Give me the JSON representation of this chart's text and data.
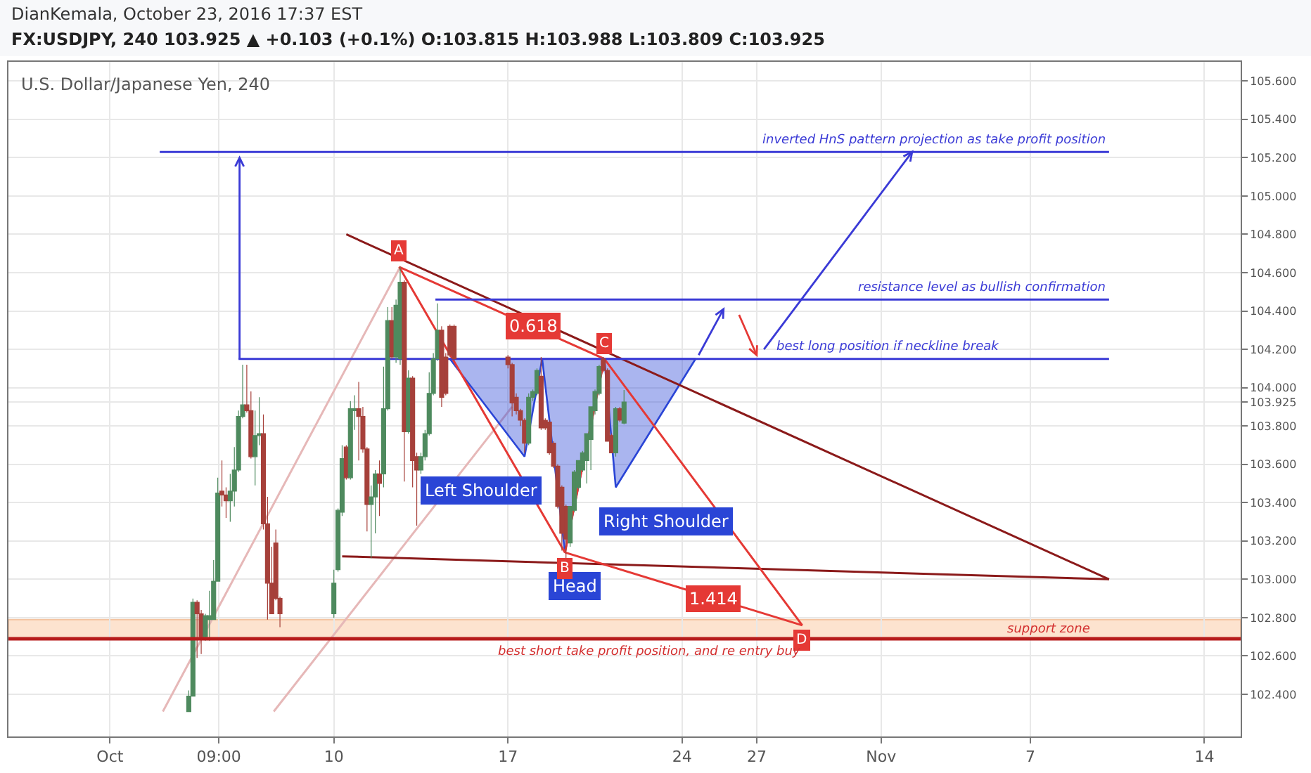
{
  "chart_data": {
    "type": "candlestick",
    "title": "DianKemala, October 23, 2016 17:37 EST",
    "subtitle": "FX:USDJPY, 240 103.925 ▲ +0.103 (+0.1%) O:103.815 H:103.988 L:103.809 C:103.925",
    "annotations": [
      "U.S. Dollar/Japanese Yen, 240",
      {
        "text": "0.618",
        "x": "2016-10-18T00:00",
        "y": 104.32
      },
      {
        "text": "1.414",
        "x": "2016-10-25T06:00",
        "y": 102.9
      }
    ],
    "x": [
      "2016-10-04T04:00",
      "2016-10-04T08:00",
      "2016-10-04T12:00",
      "2016-10-04T16:00",
      "2016-10-04T20:00",
      "2016-10-05T00:00",
      "2016-10-05T04:00",
      "2016-10-05T08:00",
      "2016-10-05T12:00",
      "2016-10-05T16:00",
      "2016-10-05T20:00",
      "2016-10-06T00:00",
      "2016-10-06T04:00",
      "2016-10-06T08:00",
      "2016-10-06T12:00",
      "2016-10-06T16:00",
      "2016-10-06T20:00",
      "2016-10-07T00:00",
      "2016-10-07T04:00",
      "2016-10-07T08:00",
      "2016-10-07T12:00",
      "2016-10-07T16:00",
      "2016-10-07T20:00",
      "2016-10-10T00:00",
      "2016-10-10T04:00",
      "2016-10-10T08:00",
      "2016-10-10T12:00",
      "2016-10-10T16:00",
      "2016-10-10T20:00",
      "2016-10-11T00:00",
      "2016-10-11T04:00",
      "2016-10-11T08:00",
      "2016-10-11T12:00",
      "2016-10-11T16:00",
      "2016-10-11T20:00",
      "2016-10-12T00:00",
      "2016-10-12T04:00",
      "2016-10-12T08:00",
      "2016-10-12T12:00",
      "2016-10-12T16:00",
      "2016-10-12T20:00",
      "2016-10-13T00:00",
      "2016-10-13T04:00",
      "2016-10-13T08:00",
      "2016-10-13T12:00",
      "2016-10-13T16:00",
      "2016-10-13T20:00",
      "2016-10-14T00:00",
      "2016-10-14T04:00",
      "2016-10-14T08:00",
      "2016-10-14T12:00",
      "2016-10-14T16:00",
      "2016-10-14T20:00",
      "2016-10-17T00:00",
      "2016-10-17T04:00",
      "2016-10-17T08:00",
      "2016-10-17T12:00",
      "2016-10-17T16:00",
      "2016-10-17T20:00",
      "2016-10-18T00:00",
      "2016-10-18T04:00",
      "2016-10-18T08:00",
      "2016-10-18T12:00",
      "2016-10-18T16:00",
      "2016-10-18T20:00",
      "2016-10-19T00:00",
      "2016-10-19T04:00",
      "2016-10-19T08:00",
      "2016-10-19T12:00",
      "2016-10-19T16:00",
      "2016-10-19T20:00",
      "2016-10-20T00:00",
      "2016-10-20T04:00",
      "2016-10-20T08:00",
      "2016-10-20T12:00",
      "2016-10-20T16:00",
      "2016-10-20T20:00",
      "2016-10-21T00:00",
      "2016-10-21T04:00",
      "2016-10-21T08:00",
      "2016-10-21T12:00",
      "2016-10-21T16:00"
    ],
    "ohlc": [
      [
        102.31,
        102.42,
        102.31,
        102.39
      ],
      [
        102.39,
        102.9,
        102.39,
        102.88
      ],
      [
        102.88,
        102.89,
        102.59,
        102.82
      ],
      [
        102.82,
        102.84,
        102.61,
        102.7
      ],
      [
        102.7,
        102.82,
        102.68,
        102.81
      ],
      [
        102.79,
        102.94,
        102.68,
        102.81
      ],
      [
        102.79,
        103.1,
        102.79,
        102.99
      ],
      [
        102.99,
        103.53,
        102.99,
        103.45
      ],
      [
        103.46,
        103.62,
        103.38,
        103.44
      ],
      [
        103.44,
        103.48,
        103.32,
        103.41
      ],
      [
        103.41,
        103.55,
        103.3,
        103.46
      ],
      [
        103.46,
        103.69,
        103.38,
        103.57
      ],
      [
        103.57,
        103.88,
        103.56,
        103.85
      ],
      [
        103.85,
        104.12,
        103.84,
        103.91
      ],
      [
        103.91,
        104.12,
        103.87,
        103.88
      ],
      [
        103.88,
        103.98,
        103.63,
        103.64
      ],
      [
        103.64,
        103.88,
        103.49,
        103.75
      ],
      [
        103.75,
        103.95,
        103.7,
        103.76
      ],
      [
        103.76,
        103.86,
        103.26,
        103.29
      ],
      [
        103.29,
        103.43,
        102.79,
        102.98
      ],
      [
        102.98,
        103.17,
        102.82,
        102.82
      ],
      [
        103.19,
        103.26,
        102.89,
        102.9
      ],
      [
        102.9,
        102.91,
        102.75,
        102.82
      ],
      [
        102.82,
        103.05,
        102.8,
        102.98
      ],
      [
        103.05,
        103.37,
        103.04,
        103.36
      ],
      [
        103.35,
        103.7,
        103.33,
        103.63
      ],
      [
        103.69,
        103.7,
        103.52,
        103.53
      ],
      [
        103.53,
        103.93,
        103.52,
        103.89
      ],
      [
        103.88,
        103.96,
        103.78,
        103.89
      ],
      [
        103.89,
        104.03,
        103.62,
        103.85
      ],
      [
        103.85,
        103.9,
        103.66,
        103.68
      ],
      [
        103.68,
        103.69,
        103.25,
        103.39
      ],
      [
        103.39,
        103.49,
        103.11,
        103.43
      ],
      [
        103.43,
        103.57,
        103.24,
        103.55
      ],
      [
        103.55,
        103.62,
        103.33,
        103.5
      ],
      [
        103.55,
        104.11,
        103.48,
        103.89
      ],
      [
        103.89,
        104.42,
        103.88,
        104.35
      ],
      [
        104.35,
        104.42,
        104.15,
        104.16
      ],
      [
        104.16,
        104.46,
        104.13,
        104.43
      ],
      [
        104.15,
        104.63,
        104.12,
        104.55
      ],
      [
        104.55,
        104.56,
        103.51,
        103.77
      ],
      [
        103.77,
        104.09,
        103.76,
        104.05
      ],
      [
        104.05,
        104.06,
        103.48,
        103.62
      ],
      [
        103.64,
        103.66,
        103.28,
        103.57
      ],
      [
        103.57,
        103.66,
        103.55,
        103.64
      ],
      [
        103.64,
        103.78,
        103.62,
        103.76
      ],
      [
        103.76,
        104.08,
        103.75,
        103.97
      ],
      [
        103.97,
        104.18,
        103.96,
        104.15
      ],
      [
        104.15,
        104.44,
        104.14,
        104.3
      ],
      [
        104.3,
        104.32,
        103.9,
        103.95
      ],
      [
        104.16,
        104.18,
        103.96,
        103.97
      ],
      [
        104.32,
        104.33,
        104.16,
        104.17
      ],
      [
        104.32,
        104.33,
        104.14,
        104.15
      ],
      [
        104.16,
        104.17,
        104.1,
        104.12
      ],
      [
        104.12,
        104.13,
        103.85,
        103.92
      ],
      [
        103.95,
        103.97,
        103.86,
        103.88
      ],
      [
        103.88,
        103.89,
        103.8,
        103.83
      ],
      [
        103.83,
        103.84,
        103.66,
        103.71
      ],
      [
        103.71,
        103.97,
        103.7,
        103.95
      ],
      [
        103.95,
        103.99,
        103.93,
        103.98
      ],
      [
        103.97,
        104.1,
        103.96,
        104.09
      ],
      [
        104.06,
        104.16,
        103.78,
        103.79
      ],
      [
        103.83,
        103.84,
        103.78,
        103.79
      ],
      [
        103.82,
        103.83,
        103.65,
        103.66
      ],
      [
        103.71,
        103.72,
        103.58,
        103.59
      ],
      [
        103.59,
        103.6,
        103.37,
        103.38
      ],
      [
        103.48,
        103.49,
        103.15,
        103.24
      ],
      [
        103.38,
        103.39,
        103.11,
        103.21
      ],
      [
        103.19,
        103.38,
        103.17,
        103.38
      ],
      [
        103.36,
        103.57,
        103.35,
        103.56
      ],
      [
        103.48,
        103.62,
        103.47,
        103.62
      ],
      [
        103.57,
        103.67,
        103.56,
        103.66
      ],
      [
        103.62,
        103.76,
        103.5,
        103.76
      ],
      [
        103.73,
        103.9,
        103.57,
        103.9
      ],
      [
        103.88,
        103.99,
        103.86,
        103.98
      ],
      [
        103.97,
        104.12,
        103.96,
        104.11
      ],
      [
        104.15,
        104.16,
        104.08,
        104.09
      ],
      [
        104.09,
        104.1,
        103.72,
        103.72
      ],
      [
        103.75,
        103.76,
        103.66,
        103.66
      ],
      [
        103.66,
        103.9,
        103.64,
        103.89
      ],
      [
        103.89,
        103.9,
        103.82,
        103.83
      ],
      [
        103.815,
        103.988,
        103.809,
        103.925
      ]
    ],
    "series": [
      {
        "type": "line",
        "color": "#e6b8b8",
        "x": [
          "2016-10-03T03:00",
          "2016-10-12T15:00"
        ],
        "values": [
          102.31,
          104.62
        ]
      },
      {
        "type": "line",
        "color": "#e6b8b8",
        "x": [
          "2016-10-07T14:00",
          "2016-10-17T04:00"
        ],
        "values": [
          102.31,
          103.9
        ]
      },
      {
        "type": "area",
        "color": "#2a45d6",
        "x": [
          "2016-10-14T16:00",
          "2016-10-17T16:00",
          "2016-10-18T09:00",
          "2016-10-19T07:00",
          "2016-10-20T21:00",
          "2016-10-21T08:00",
          "2016-10-24T13:00",
          "2016-10-14T16:00"
        ],
        "values": [
          104.15,
          103.64,
          104.15,
          103.14,
          104.15,
          103.48,
          104.15,
          104.15
        ],
        "value_labels": [
          null,
          "Left Shoulder",
          null,
          "Head",
          null,
          "Right Shoulder",
          null,
          null
        ]
      },
      {
        "type": "line",
        "color": "#8b1a1a",
        "x": [
          "2016-10-10T12:00",
          "2016-11-10T04:00"
        ],
        "values": [
          104.8,
          103.0
        ]
      },
      {
        "type": "line",
        "color": "#8b1a1a",
        "x": [
          "2016-10-10T08:00",
          "2016-11-10T04:00"
        ],
        "values": [
          103.12,
          103.0
        ]
      },
      {
        "type": "line",
        "color": "#e53935",
        "x": [
          "2016-10-12T15:00",
          "2016-10-19T07:00",
          "2016-10-20T21:00",
          "2016-10-28T20:00"
        ],
        "values": [
          104.63,
          103.14,
          104.15,
          102.76
        ],
        "value_labels": [
          "A",
          "B",
          "C",
          "D"
        ]
      },
      {
        "type": "line",
        "color": "#e53935",
        "x": [
          "2016-10-12T15:00",
          "2016-10-20T21:00"
        ],
        "values": [
          104.63,
          104.15
        ]
      },
      {
        "type": "line",
        "color": "#e53935",
        "x": [
          "2016-10-19T07:00",
          "2016-10-28T20:00"
        ],
        "values": [
          103.14,
          102.76
        ]
      },
      {
        "type": "line",
        "color": "#3a3ad6",
        "x": [
          "2016-10-06T04:00",
          "2016-10-27T17:00",
          "2016-11-10T04:00"
        ],
        "values": [
          104.15,
          104.15,
          104.15
        ],
        "value_labels": [
          null,
          "best long position if neckline break",
          null
        ]
      },
      {
        "type": "line",
        "color": "#3a3ad6",
        "x": [
          "2016-10-03T00:00",
          "2016-11-10T04:00"
        ],
        "values": [
          105.23,
          105.23
        ],
        "value_labels": [
          null,
          "inverted HnS pattern projection as take profit position"
        ]
      },
      {
        "type": "line",
        "color": "#3a3ad6",
        "x": [
          "2016-10-14T02:00",
          "2016-11-10T04:00"
        ],
        "values": [
          104.46,
          104.46
        ],
        "value_labels": [
          null,
          "resistance level as bullish confirmation"
        ]
      }
    ],
    "ref_lines": [
      {
        "axis": "y",
        "value": 102.69,
        "label": "best short take profit position, and re entry buy",
        "color": "#b71c1c"
      }
    ],
    "bands": [
      {
        "axis": "y",
        "from": 102.69,
        "to": 102.79,
        "label": "support zone",
        "color": "#fde3cf"
      }
    ],
    "xlim": [
      "2016-09-26T22:00",
      "2016-11-15T11:00"
    ],
    "xticks": [
      {
        "value": "2016-10-01",
        "label": "Oct"
      },
      {
        "value": "2016-10-05T09:00",
        "label": "09:00"
      },
      {
        "value": "2016-10-10",
        "label": "10"
      },
      {
        "value": "2016-10-17",
        "label": "17"
      },
      {
        "value": "2016-10-24",
        "label": "24"
      },
      {
        "value": "2016-10-27",
        "label": "27"
      },
      {
        "value": "2016-11-01",
        "label": "Nov"
      },
      {
        "value": "2016-11-07",
        "label": "7"
      },
      {
        "value": "2016-11-14",
        "label": "14"
      }
    ],
    "ylim": [
      102.18,
      105.7
    ],
    "yticks": [
      {
        "value": 102.4,
        "label": "102.400"
      },
      {
        "value": 102.6,
        "label": "102.600"
      },
      {
        "value": 102.8,
        "label": "102.800"
      },
      {
        "value": 103.0,
        "label": "103.000"
      },
      {
        "value": 103.2,
        "label": "103.200"
      },
      {
        "value": 103.4,
        "label": "103.400"
      },
      {
        "value": 103.6,
        "label": "103.600"
      },
      {
        "value": 103.8,
        "label": "103.800"
      },
      103.925,
      {
        "value": 104.0,
        "label": "104.000"
      },
      {
        "value": 104.2,
        "label": "104.200"
      },
      {
        "value": 104.4,
        "label": "104.400"
      },
      {
        "value": 104.6,
        "label": "104.600"
      },
      {
        "value": 104.8,
        "label": "104.800"
      },
      {
        "value": 105.0,
        "label": "105.000"
      },
      {
        "value": 105.2,
        "label": "105.200"
      },
      {
        "value": 105.4,
        "label": "105.400"
      },
      {
        "value": 105.6,
        "label": "105.600"
      }
    ],
    "grid": true
  }
}
